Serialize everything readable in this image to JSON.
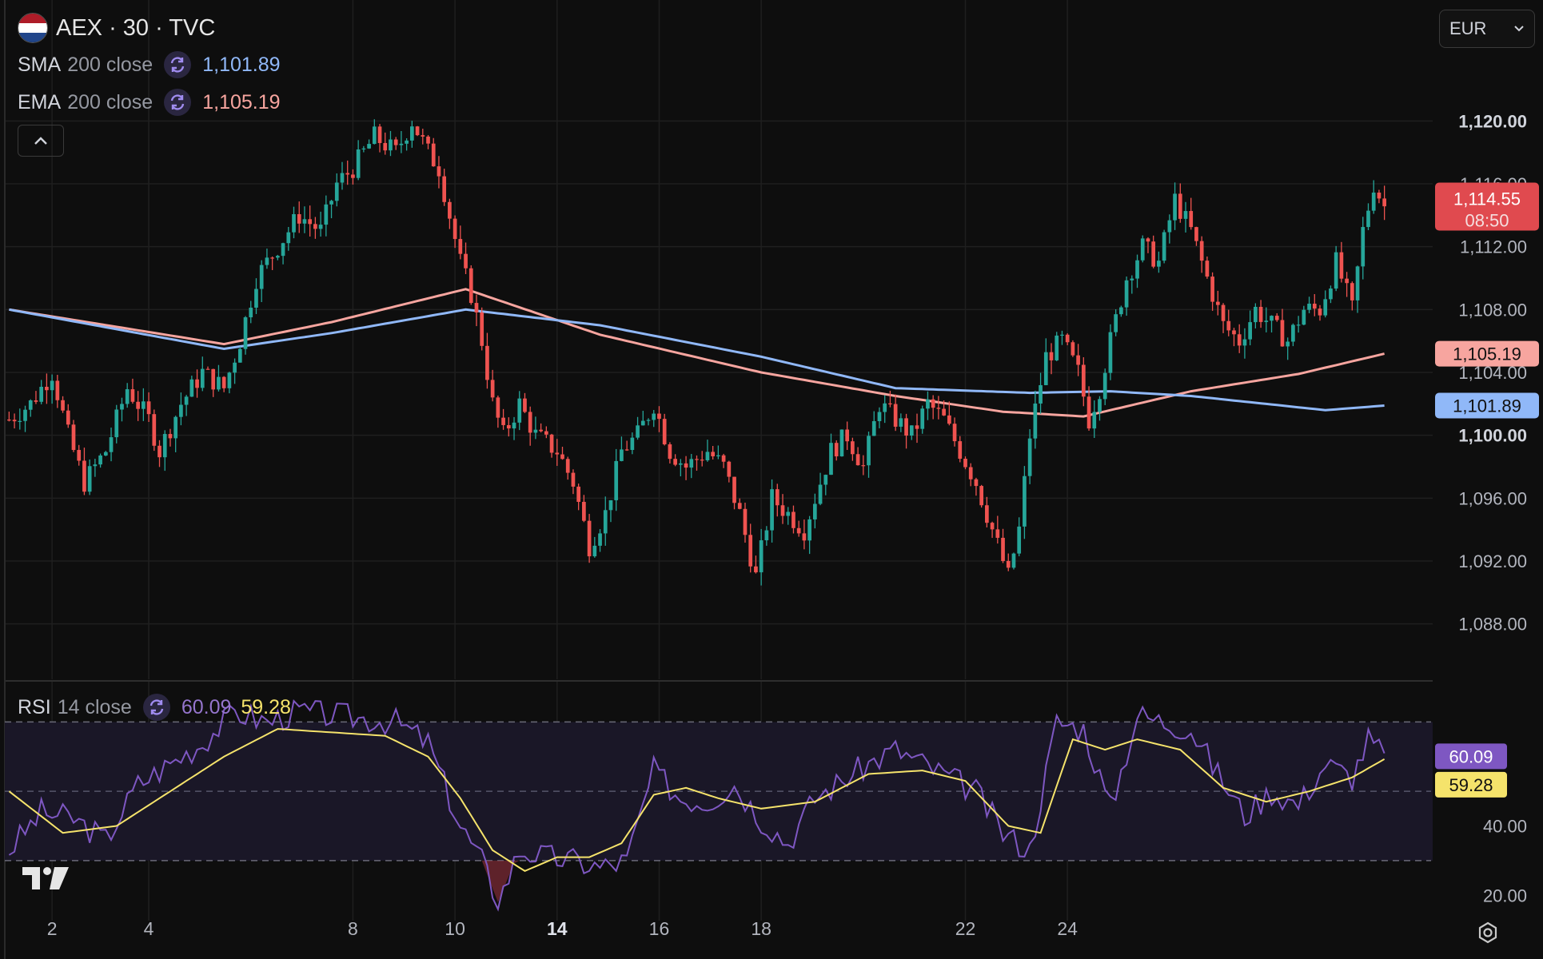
{
  "header": {
    "symbol_title": "AEX · 30 · TVC",
    "currency": "EUR",
    "flag_colors": [
      "#ae1c28",
      "#ffffff",
      "#21468b"
    ]
  },
  "indicators": {
    "sma": {
      "name": "SMA",
      "args": "200 close",
      "value": "1,101.89",
      "color": "#90b8f8"
    },
    "ema": {
      "name": "EMA",
      "args": "200 close",
      "value": "1,105.19",
      "color": "#f7a59f"
    },
    "rsi": {
      "name": "RSI",
      "args": "14 close",
      "value": "60.09",
      "ma_value": "59.28",
      "color": "#7e57c2",
      "ma_color": "#f5e36b"
    }
  },
  "price_tag": {
    "price": "1,114.55",
    "countdown": "08:50",
    "color": "#e04a4f"
  },
  "colors": {
    "up": "#26a69a",
    "down": "#ef5350",
    "background": "#0e0e0e"
  },
  "icons": [
    "refresh-icon",
    "chevron-up-icon",
    "chevron-down-icon",
    "tradingview-logo-icon",
    "settings-icon"
  ],
  "chart_data": [
    {
      "type": "candlestick",
      "title": "AEX · 30 · TVC",
      "price_axis_ticks": [
        "1,120.00",
        "1,116.00",
        "1,112.00",
        "1,108.00",
        "1,104.00",
        "1,100.00",
        "1,096.00",
        "1,092.00",
        "1,088.00"
      ],
      "bold_ticks": [
        "1,120.00",
        "1,100.00"
      ],
      "ylim": [
        1086,
        1122
      ],
      "x_ticks": [
        "2",
        "4",
        "8",
        "10",
        "14",
        "16",
        "18",
        "22",
        "24"
      ],
      "bold_x_ticks": [
        "14"
      ],
      "grid": true,
      "close_path": [
        [
          0,
          1101
        ],
        [
          4,
          1102
        ],
        [
          8,
          1104
        ],
        [
          11,
          1100
        ],
        [
          14,
          1097
        ],
        [
          18,
          1099
        ],
        [
          22,
          1103
        ],
        [
          26,
          1101
        ],
        [
          28,
          1099
        ],
        [
          32,
          1102
        ],
        [
          36,
          1104
        ],
        [
          40,
          1103
        ],
        [
          43,
          1106
        ],
        [
          46,
          1110
        ],
        [
          50,
          1112
        ],
        [
          54,
          1114
        ],
        [
          58,
          1113
        ],
        [
          61,
          1116
        ],
        [
          64,
          1117
        ],
        [
          68,
          1119
        ],
        [
          72,
          1118
        ],
        [
          75,
          1120
        ],
        [
          78,
          1118
        ],
        [
          80,
          1117
        ],
        [
          82,
          1114
        ],
        [
          84,
          1111
        ],
        [
          86,
          1109
        ],
        [
          88,
          1106
        ],
        [
          90,
          1102
        ],
        [
          92,
          1100
        ],
        [
          95,
          1102
        ],
        [
          98,
          1100
        ],
        [
          102,
          1099
        ],
        [
          105,
          1097
        ],
        [
          108,
          1093
        ],
        [
          111,
          1095
        ],
        [
          114,
          1099
        ],
        [
          117,
          1100
        ],
        [
          120,
          1102
        ],
        [
          123,
          1099
        ],
        [
          126,
          1098
        ],
        [
          130,
          1099
        ],
        [
          133,
          1098
        ],
        [
          136,
          1095
        ],
        [
          139,
          1091
        ],
        [
          142,
          1096
        ],
        [
          145,
          1095
        ],
        [
          148,
          1094
        ],
        [
          150,
          1096
        ],
        [
          153,
          1099
        ],
        [
          156,
          1100
        ],
        [
          159,
          1098
        ],
        [
          162,
          1102
        ],
        [
          165,
          1101
        ],
        [
          168,
          1100
        ],
        [
          171,
          1102
        ],
        [
          174,
          1101
        ],
        [
          177,
          1099
        ],
        [
          180,
          1097
        ],
        [
          183,
          1094
        ],
        [
          186,
          1091
        ],
        [
          188,
          1094
        ],
        [
          190,
          1100
        ],
        [
          193,
          1105
        ],
        [
          196,
          1106
        ],
        [
          199,
          1104
        ],
        [
          201,
          1101
        ],
        [
          203,
          1103
        ],
        [
          205,
          1106
        ],
        [
          208,
          1110
        ],
        [
          211,
          1112
        ],
        [
          214,
          1111
        ],
        [
          217,
          1115
        ],
        [
          220,
          1113
        ],
        [
          223,
          1110
        ],
        [
          226,
          1107
        ],
        [
          229,
          1106
        ],
        [
          232,
          1108
        ],
        [
          235,
          1107
        ],
        [
          238,
          1106
        ],
        [
          241,
          1108
        ],
        [
          244,
          1108
        ],
        [
          247,
          1111
        ],
        [
          250,
          1108
        ],
        [
          252,
          1113
        ],
        [
          254,
          1116
        ],
        [
          256,
          1114.55
        ]
      ],
      "sma_200": [
        [
          0,
          1108
        ],
        [
          40,
          1105.5
        ],
        [
          60,
          1106.5
        ],
        [
          85,
          1108
        ],
        [
          110,
          1107
        ],
        [
          140,
          1105
        ],
        [
          165,
          1103
        ],
        [
          190,
          1102.7
        ],
        [
          205,
          1102.8
        ],
        [
          220,
          1102.5
        ],
        [
          245,
          1101.6
        ],
        [
          256,
          1101.89
        ]
      ],
      "ema_200": [
        [
          0,
          1108
        ],
        [
          40,
          1105.8
        ],
        [
          60,
          1107.2
        ],
        [
          85,
          1109.3
        ],
        [
          110,
          1106.4
        ],
        [
          140,
          1104
        ],
        [
          165,
          1102.5
        ],
        [
          185,
          1101.5
        ],
        [
          200,
          1101.2
        ],
        [
          220,
          1102.8
        ],
        [
          240,
          1103.9
        ],
        [
          256,
          1105.19
        ]
      ]
    },
    {
      "type": "line",
      "title": "RSI 14 close",
      "yticks": [
        "40.00",
        "20.00"
      ],
      "levels": [
        70,
        30
      ],
      "middle": 50,
      "ylim": [
        15,
        80
      ],
      "series": [
        {
          "name": "RSI",
          "values": [
            [
              0,
              33
            ],
            [
              6,
              44
            ],
            [
              12,
              42
            ],
            [
              18,
              36
            ],
            [
              24,
              52
            ],
            [
              30,
              58
            ],
            [
              36,
              64
            ],
            [
              42,
              73
            ],
            [
              48,
              70
            ],
            [
              54,
              73
            ],
            [
              60,
              72
            ],
            [
              66,
              71
            ],
            [
              72,
              70
            ],
            [
              78,
              64
            ],
            [
              84,
              40
            ],
            [
              88,
              30
            ],
            [
              91,
              18
            ],
            [
              95,
              33
            ],
            [
              100,
              31
            ],
            [
              105,
              30
            ],
            [
              110,
              28
            ],
            [
              115,
              30
            ],
            [
              120,
              56
            ],
            [
              125,
              48
            ],
            [
              130,
              47
            ],
            [
              135,
              52
            ],
            [
              140,
              42
            ],
            [
              145,
              35
            ],
            [
              150,
              48
            ],
            [
              155,
              53
            ],
            [
              160,
              58
            ],
            [
              165,
              62
            ],
            [
              170,
              58
            ],
            [
              175,
              54
            ],
            [
              180,
              50
            ],
            [
              185,
              38
            ],
            [
              190,
              33
            ],
            [
              195,
              70
            ],
            [
              200,
              68
            ],
            [
              205,
              45
            ],
            [
              210,
              72
            ],
            [
              215,
              70
            ],
            [
              220,
              68
            ],
            [
              225,
              55
            ],
            [
              230,
              43
            ],
            [
              235,
              50
            ],
            [
              240,
              46
            ],
            [
              245,
              58
            ],
            [
              250,
              54
            ],
            [
              253,
              65
            ],
            [
              256,
              60.09
            ]
          ]
        },
        {
          "name": "RSI MA",
          "values": [
            [
              0,
              50
            ],
            [
              10,
              38
            ],
            [
              20,
              40
            ],
            [
              30,
              50
            ],
            [
              40,
              60
            ],
            [
              50,
              68
            ],
            [
              60,
              67
            ],
            [
              70,
              66
            ],
            [
              78,
              60
            ],
            [
              84,
              48
            ],
            [
              90,
              33
            ],
            [
              96,
              27
            ],
            [
              102,
              31
            ],
            [
              108,
              31
            ],
            [
              114,
              35
            ],
            [
              120,
              49
            ],
            [
              126,
              51
            ],
            [
              132,
              48
            ],
            [
              140,
              45
            ],
            [
              150,
              47
            ],
            [
              160,
              55
            ],
            [
              170,
              56
            ],
            [
              178,
              53
            ],
            [
              186,
              40
            ],
            [
              192,
              38
            ],
            [
              198,
              65
            ],
            [
              204,
              62
            ],
            [
              210,
              65
            ],
            [
              218,
              62
            ],
            [
              226,
              51
            ],
            [
              234,
              47
            ],
            [
              242,
              50
            ],
            [
              250,
              54
            ],
            [
              256,
              59.28
            ]
          ]
        }
      ]
    }
  ]
}
